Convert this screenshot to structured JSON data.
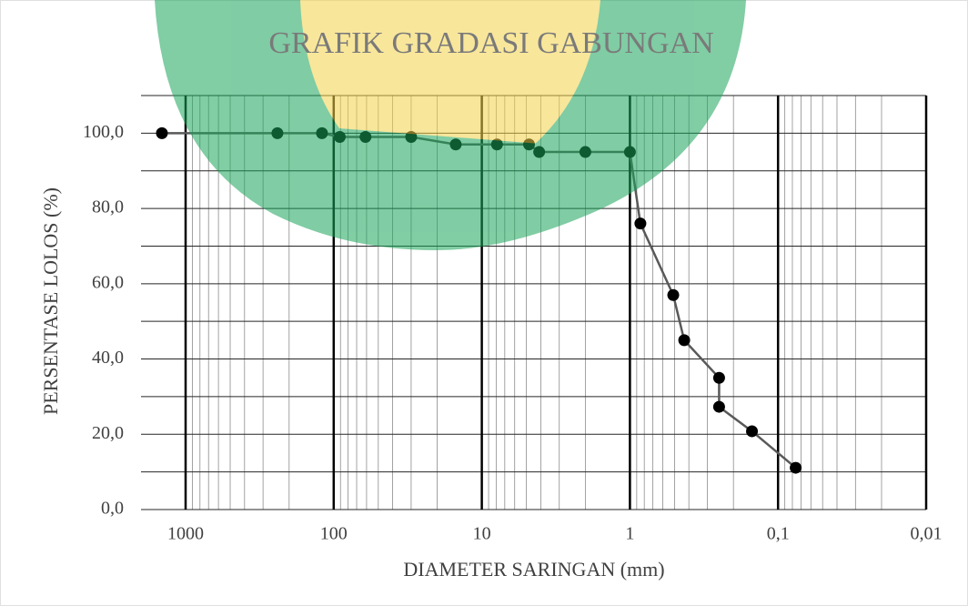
{
  "chart_data": {
    "type": "line",
    "title": "GRAFIK GRADASI GABUNGAN",
    "xlabel": "DIAMETER SARINGAN (mm)",
    "ylabel": "PERSENTASE LOLOS (%)",
    "xscale": "log",
    "xlim": [
      2000,
      0.01
    ],
    "xticks": [
      1000,
      100,
      10,
      1,
      {
        "value": 0.1,
        "label": "0,1"
      },
      {
        "value": 0.01,
        "label": "0,01"
      }
    ],
    "ylim": [
      0,
      110
    ],
    "yticks": [
      {
        "value": 0,
        "label": "0,0"
      },
      {
        "value": 20,
        "label": "20,0"
      },
      {
        "value": 40,
        "label": "40,0"
      },
      {
        "value": 60,
        "label": "60,0"
      },
      {
        "value": 80,
        "label": "80,0"
      },
      {
        "value": 100,
        "label": "100,0"
      }
    ],
    "y_minor_grid": [
      10,
      30,
      50,
      70,
      90,
      110
    ],
    "grid": true,
    "series": [
      {
        "color": "#595959",
        "marker_color": "#000000",
        "x": [
          1445,
          240,
          120,
          91,
          61,
          30,
          15,
          7.9,
          4.8,
          4.1,
          2.0,
          1.0,
          0.85,
          0.51,
          0.43,
          0.25,
          0.25,
          0.15,
          0.076
        ],
        "values": [
          100,
          100,
          100,
          99,
          99,
          99,
          97,
          97,
          97,
          95,
          95,
          95,
          76,
          57,
          45,
          35,
          27.3,
          20.8,
          11.1
        ]
      }
    ]
  }
}
